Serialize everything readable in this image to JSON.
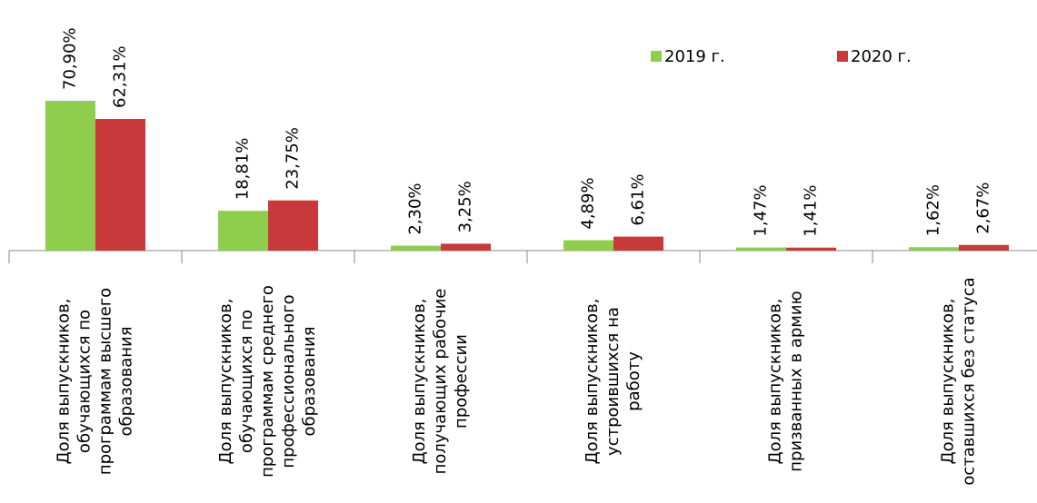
{
  "chart_data": {
    "type": "bar",
    "categories": [
      "Доля выпускников,\nобучающихся по\nпрограммам высшего\nобразования",
      "Доля выпускников,\nобучающихся по\nпрограммам среднего\nпрофессионального\nобразования",
      "Доля выпускников,\nполучающих рабочие\nпрофессии",
      "Доля выпускников,\nустроившихся на\nработу",
      "Доля выпускников,\nпризванных в армию",
      "Доля выпускников,\nоставшихся без статуса"
    ],
    "series": [
      {
        "name": "2019 г.",
        "color": "#8fcd4c",
        "values": [
          70.9,
          18.81,
          2.3,
          4.89,
          1.47,
          1.62
        ],
        "value_labels": [
          "70,90%",
          "18,81%",
          "2,30%",
          "4,89%",
          "1,47%",
          "1,62%"
        ]
      },
      {
        "name": "2020 г.",
        "color": "#c9393b",
        "values": [
          62.31,
          23.75,
          3.25,
          6.61,
          1.41,
          2.67
        ],
        "value_labels": [
          "62,31%",
          "23,75%",
          "3,25%",
          "6,61%",
          "1,41%",
          "2,67%"
        ]
      }
    ],
    "legend": "top-right"
  }
}
